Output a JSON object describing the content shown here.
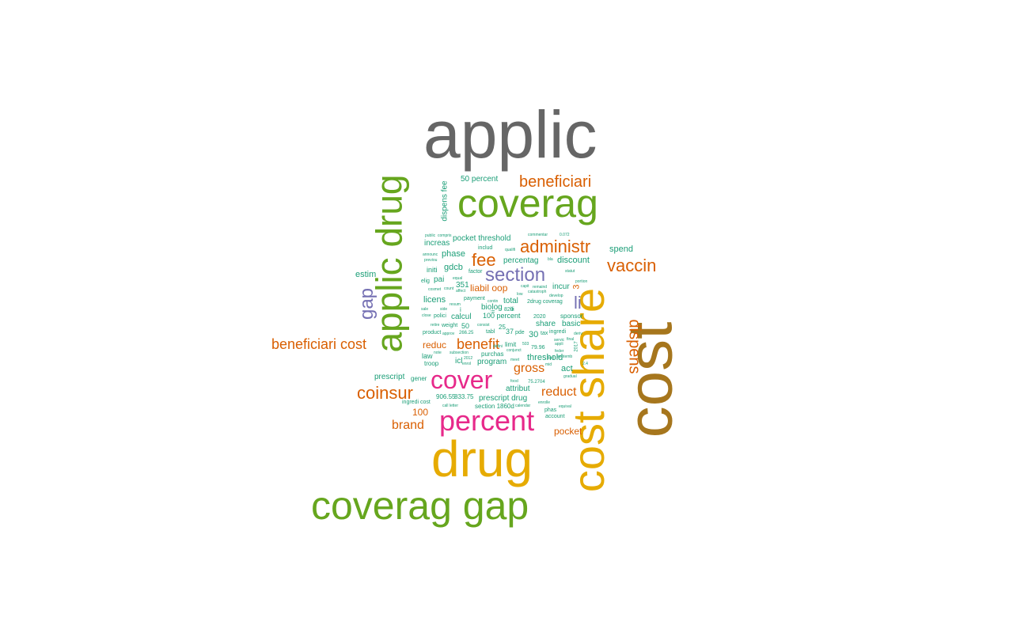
{
  "palette": {
    "teal": "#1b9e77",
    "orange": "#d95f02",
    "purple": "#7570b3",
    "magenta": "#e7298a",
    "green": "#66a61e",
    "gold": "#e6ab02",
    "brown": "#a6761d",
    "gray": "#666666"
  },
  "words": [
    {
      "text": "applic",
      "color": "gray"
    },
    {
      "text": "cost",
      "color": "brown"
    },
    {
      "text": "cost share",
      "color": "gold"
    },
    {
      "text": "drug",
      "color": "gold"
    },
    {
      "text": "applic drug",
      "color": "green"
    },
    {
      "text": "coverag",
      "color": "green"
    },
    {
      "text": "coverag gap",
      "color": "green"
    },
    {
      "text": "percent",
      "color": "magenta"
    },
    {
      "text": "cover",
      "color": "magenta"
    },
    {
      "text": "section",
      "color": "purple"
    },
    {
      "text": "gap",
      "color": "purple"
    },
    {
      "text": "li",
      "color": "purple"
    },
    {
      "text": "beneficiari",
      "color": "orange"
    },
    {
      "text": "beneficiari cost",
      "color": "orange"
    },
    {
      "text": "administr",
      "color": "orange"
    },
    {
      "text": "vaccin",
      "color": "orange"
    },
    {
      "text": "dispens",
      "color": "orange"
    },
    {
      "text": "fee",
      "color": "orange"
    },
    {
      "text": "coinsur",
      "color": "orange"
    },
    {
      "text": "benefit",
      "color": "orange"
    },
    {
      "text": "gross",
      "color": "orange"
    },
    {
      "text": "reduct",
      "color": "orange"
    },
    {
      "text": "brand",
      "color": "orange"
    },
    {
      "text": "pocket",
      "color": "orange"
    },
    {
      "text": "100",
      "color": "orange"
    },
    {
      "text": "liabil oop",
      "color": "orange"
    },
    {
      "text": "reduc",
      "color": "orange"
    },
    {
      "text": "3",
      "color": "orange"
    },
    {
      "text": "dispens fee",
      "color": "teal"
    },
    {
      "text": "50 percent",
      "color": "teal"
    },
    {
      "text": "pocket threshold",
      "color": "teal"
    },
    {
      "text": "spend",
      "color": "teal"
    },
    {
      "text": "increas",
      "color": "teal"
    },
    {
      "text": "phase",
      "color": "teal"
    },
    {
      "text": "percentag",
      "color": "teal"
    },
    {
      "text": "discount",
      "color": "teal"
    },
    {
      "text": "gdcb",
      "color": "teal"
    },
    {
      "text": "estim",
      "color": "teal"
    },
    {
      "text": "initi",
      "color": "teal"
    },
    {
      "text": "pai",
      "color": "teal"
    },
    {
      "text": "351",
      "color": "teal"
    },
    {
      "text": "incur",
      "color": "teal"
    },
    {
      "text": "licens",
      "color": "teal"
    },
    {
      "text": "total",
      "color": "teal"
    },
    {
      "text": "biolog",
      "color": "teal"
    },
    {
      "text": "calcul",
      "color": "teal"
    },
    {
      "text": "100 percent",
      "color": "teal"
    },
    {
      "text": "sponsor",
      "color": "teal"
    },
    {
      "text": "share",
      "color": "teal"
    },
    {
      "text": "basic",
      "color": "teal"
    },
    {
      "text": "30",
      "color": "teal"
    },
    {
      "text": "37",
      "color": "teal"
    },
    {
      "text": "50",
      "color": "teal"
    },
    {
      "text": "25",
      "color": "teal"
    },
    {
      "text": "limit",
      "color": "teal"
    },
    {
      "text": "threshold",
      "color": "teal"
    },
    {
      "text": "program",
      "color": "teal"
    },
    {
      "text": "act",
      "color": "teal"
    },
    {
      "text": "icl",
      "color": "teal"
    },
    {
      "text": "law",
      "color": "teal"
    },
    {
      "text": "troop",
      "color": "teal"
    },
    {
      "text": "prescript",
      "color": "teal"
    },
    {
      "text": "gener",
      "color": "teal"
    },
    {
      "text": "attribut",
      "color": "teal"
    },
    {
      "text": "prescript drug",
      "color": "teal"
    },
    {
      "text": "section 1860d",
      "color": "teal"
    },
    {
      "text": "906.55",
      "color": "teal"
    },
    {
      "text": "833.75",
      "color": "teal"
    },
    {
      "text": "ingredi cost",
      "color": "teal"
    },
    {
      "text": "2drug coverag",
      "color": "teal"
    },
    {
      "text": "product",
      "color": "teal"
    },
    {
      "text": "weight",
      "color": "teal"
    },
    {
      "text": "polici",
      "color": "teal"
    },
    {
      "text": "payment",
      "color": "teal"
    },
    {
      "text": "purchas",
      "color": "teal"
    },
    {
      "text": "tabl",
      "color": "teal"
    },
    {
      "text": "pde",
      "color": "teal"
    },
    {
      "text": "tax",
      "color": "teal"
    },
    {
      "text": "ingredi",
      "color": "teal"
    },
    {
      "text": "includ",
      "color": "teal"
    },
    {
      "text": "factor",
      "color": "teal"
    },
    {
      "text": "account",
      "color": "teal"
    },
    {
      "text": "phas",
      "color": "teal"
    },
    {
      "text": "79.96",
      "color": "teal"
    },
    {
      "text": "2017",
      "color": "teal"
    },
    {
      "text": "2020",
      "color": "teal"
    },
    {
      "text": "820",
      "color": "teal"
    },
    {
      "text": "iii",
      "color": "teal"
    },
    {
      "text": "i",
      "color": "teal"
    },
    {
      "text": "ii",
      "color": "teal"
    },
    {
      "text": "75.2704",
      "color": "teal"
    },
    {
      "text": "public",
      "color": "teal"
    },
    {
      "text": "compris",
      "color": "teal"
    },
    {
      "text": "commentar",
      "color": "teal"
    },
    {
      "text": "0.072",
      "color": "teal"
    },
    {
      "text": "announc",
      "color": "teal"
    },
    {
      "text": "previou",
      "color": "teal"
    },
    {
      "text": "qualifi",
      "color": "teal"
    },
    {
      "text": "bla",
      "color": "teal"
    },
    {
      "text": "statut",
      "color": "teal"
    },
    {
      "text": "portion",
      "color": "teal"
    },
    {
      "text": "catastroph",
      "color": "teal"
    },
    {
      "text": "develop",
      "color": "teal"
    },
    {
      "text": "remaind",
      "color": "teal"
    },
    {
      "text": "cosmet",
      "color": "teal"
    },
    {
      "text": "elig",
      "color": "teal"
    },
    {
      "text": "count",
      "color": "teal"
    },
    {
      "text": "equal",
      "color": "teal"
    },
    {
      "text": "capit",
      "color": "teal"
    },
    {
      "text": "low",
      "color": "teal"
    },
    {
      "text": "conjunct",
      "color": "teal"
    },
    {
      "text": "calendar",
      "color": "teal"
    },
    {
      "text": "enrolle",
      "color": "teal"
    },
    {
      "text": "equival",
      "color": "teal"
    },
    {
      "text": "call letter",
      "color": "teal"
    },
    {
      "text": "approv",
      "color": "teal"
    },
    {
      "text": "retire",
      "color": "teal"
    },
    {
      "text": "consist",
      "color": "teal"
    },
    {
      "text": "servic",
      "color": "teal"
    },
    {
      "text": "final",
      "color": "teal"
    },
    {
      "text": "appli",
      "color": "teal"
    },
    {
      "text": "feder",
      "color": "teal"
    },
    {
      "text": "gradual",
      "color": "teal"
    },
    {
      "text": "food",
      "color": "teal"
    },
    {
      "text": "meet",
      "color": "teal"
    },
    {
      "text": "enrol",
      "color": "teal"
    },
    {
      "text": "2012",
      "color": "teal"
    },
    {
      "text": "subsection",
      "color": "teal"
    },
    {
      "text": "note",
      "color": "teal"
    },
    {
      "text": "defini",
      "color": "teal"
    },
    {
      "text": "266.25",
      "color": "teal"
    },
    {
      "text": "affect",
      "color": "teal"
    },
    {
      "text": "close",
      "color": "teal"
    },
    {
      "text": "side",
      "color": "teal"
    },
    {
      "text": "sale",
      "color": "teal"
    },
    {
      "text": "resum",
      "color": "teal"
    },
    {
      "text": "contin",
      "color": "teal"
    },
    {
      "text": "septemb",
      "color": "teal"
    },
    {
      "text": "mid",
      "color": "teal"
    },
    {
      "text": "2.4",
      "color": "teal"
    },
    {
      "text": "503",
      "color": "teal"
    },
    {
      "text": "deriv",
      "color": "teal"
    },
    {
      "text": "tied",
      "color": "teal"
    }
  ]
}
